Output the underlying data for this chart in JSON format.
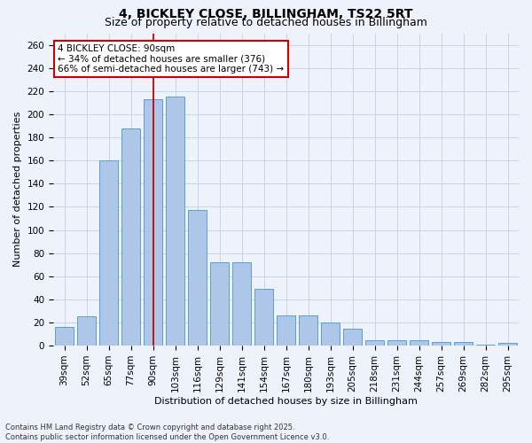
{
  "title": "4, BICKLEY CLOSE, BILLINGHAM, TS22 5RT",
  "subtitle": "Size of property relative to detached houses in Billingham",
  "xlabel": "Distribution of detached houses by size in Billingham",
  "ylabel": "Number of detached properties",
  "categories": [
    "39sqm",
    "52sqm",
    "65sqm",
    "77sqm",
    "90sqm",
    "103sqm",
    "116sqm",
    "129sqm",
    "141sqm",
    "154sqm",
    "167sqm",
    "180sqm",
    "193sqm",
    "205sqm",
    "218sqm",
    "231sqm",
    "244sqm",
    "257sqm",
    "269sqm",
    "282sqm",
    "295sqm"
  ],
  "values": [
    16,
    25,
    160,
    188,
    213,
    215,
    117,
    72,
    72,
    49,
    26,
    26,
    20,
    15,
    5,
    5,
    5,
    3,
    3,
    1,
    2
  ],
  "bar_color": "#aec6e8",
  "bar_edge_color": "#5a9fd4",
  "marker_index": 4,
  "marker_label": "4 BICKLEY CLOSE: 90sqm",
  "annotation_line1": "← 34% of detached houses are smaller (376)",
  "annotation_line2": "66% of semi-detached houses are larger (743) →",
  "vline_color": "#cc0000",
  "annotation_box_color": "#cc0000",
  "footnote1": "Contains HM Land Registry data © Crown copyright and database right 2025.",
  "footnote2": "Contains public sector information licensed under the Open Government Licence v3.0.",
  "background_color": "#eef2fa",
  "grid_color": "#c8d4e8",
  "title_fontsize": 10,
  "subtitle_fontsize": 9,
  "axis_label_fontsize": 8,
  "tick_fontsize": 7.5,
  "footnote_fontsize": 6,
  "ylim": [
    0,
    270
  ],
  "yticks": [
    0,
    20,
    40,
    60,
    80,
    100,
    120,
    140,
    160,
    180,
    200,
    220,
    240,
    260
  ]
}
